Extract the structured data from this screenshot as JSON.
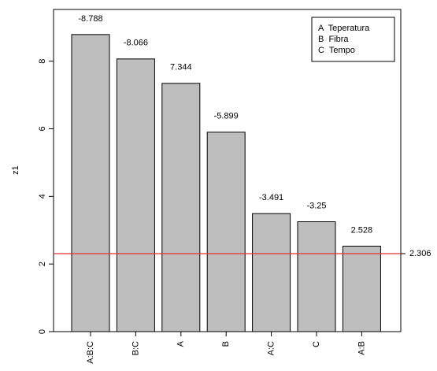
{
  "chart_data": {
    "type": "bar",
    "categories": [
      "A:B:C",
      "B:C",
      "A",
      "B",
      "A:C",
      "C",
      "A:B"
    ],
    "values": [
      8.788,
      8.066,
      7.344,
      5.899,
      3.491,
      3.25,
      2.528
    ],
    "value_labels": [
      "-8.788",
      "-8.066",
      "7.344",
      "-5.899",
      "-3.491",
      "-3.25",
      "2.528"
    ],
    "color": "#bebebe",
    "y_label": "z1",
    "ylim": [
      0,
      9.53
    ],
    "yticks": [
      0,
      2,
      4,
      6,
      8
    ],
    "reference_line": 2.306,
    "reference_color": "#e03030",
    "legend": [
      "A  Teperatura",
      "B  Fibra",
      "C  Tempo"
    ],
    "legend_position": "top-right"
  }
}
